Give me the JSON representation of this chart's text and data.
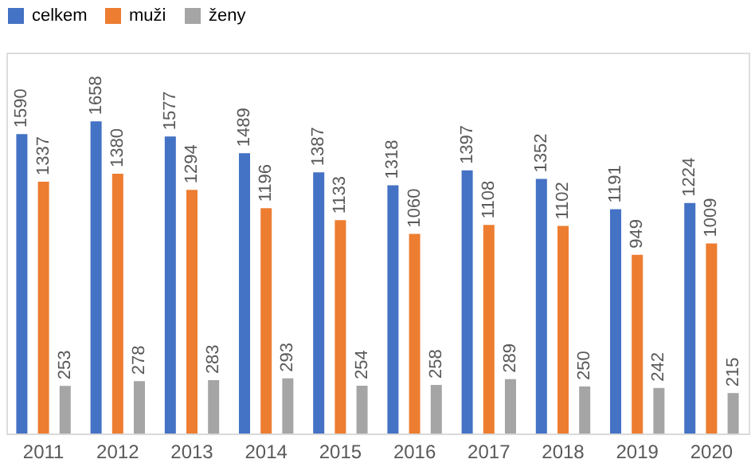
{
  "chart_data": {
    "type": "bar",
    "categories": [
      "2011",
      "2012",
      "2013",
      "2014",
      "2015",
      "2016",
      "2017",
      "2018",
      "2019",
      "2020"
    ],
    "series": [
      {
        "name": "celkem",
        "color": "#4472c4",
        "values": [
          1590,
          1658,
          1577,
          1489,
          1387,
          1318,
          1397,
          1352,
          1191,
          1224
        ]
      },
      {
        "name": "muži",
        "color": "#ed7d31",
        "values": [
          1337,
          1380,
          1294,
          1196,
          1133,
          1060,
          1108,
          1102,
          949,
          1009
        ]
      },
      {
        "name": "ženy",
        "color": "#a5a5a5",
        "values": [
          253,
          278,
          283,
          293,
          254,
          258,
          289,
          250,
          242,
          215
        ]
      }
    ],
    "data_labels": true,
    "legend": "top",
    "grid": false
  }
}
